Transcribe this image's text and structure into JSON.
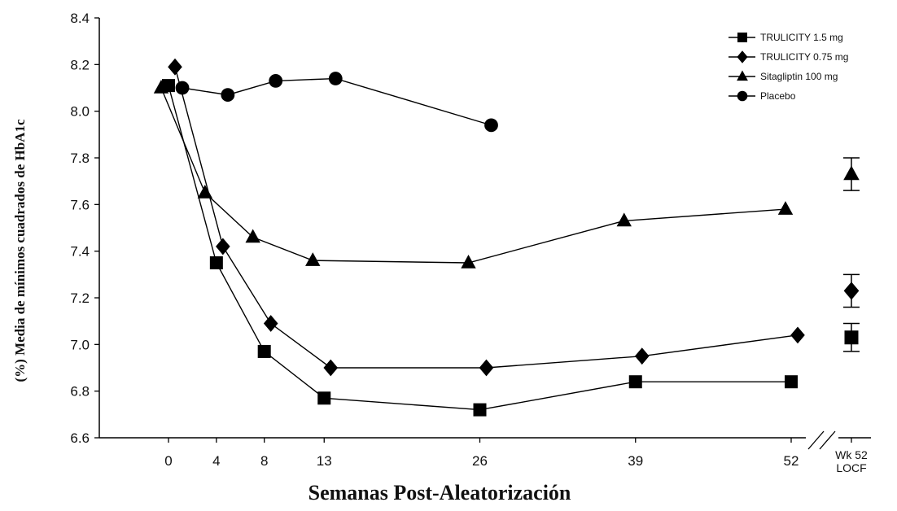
{
  "chart_data": {
    "type": "line",
    "title": "",
    "xlabel": "Semanas Post-Aleatorización",
    "ylabel": "(%) Media de mínimos cuadrados de HbA1c",
    "ylim": [
      6.6,
      8.4
    ],
    "yticks": [
      "6.6",
      "6.8",
      "7.0",
      "7.2",
      "7.4",
      "7.6",
      "7.8",
      "8.0",
      "8.2",
      "8.4"
    ],
    "xticks": [
      "0",
      "4",
      "8",
      "13",
      "26",
      "39",
      "52"
    ],
    "locf_label_line1": "Wk 52",
    "locf_label_line2": "LOCF",
    "legend_position": "top-right",
    "grid": false,
    "series": [
      {
        "name": "TRULICITY 1.5 mg",
        "marker": "square",
        "x": [
          0,
          4,
          8,
          13,
          26,
          39,
          52
        ],
        "y": [
          8.11,
          7.35,
          6.97,
          6.77,
          6.72,
          6.84,
          6.84
        ],
        "locf": {
          "mean": 7.03,
          "err": 0.06
        }
      },
      {
        "name": "TRULICITY 0.75 mg",
        "marker": "diamond",
        "x": [
          0,
          4,
          8,
          13,
          26,
          39,
          52
        ],
        "y": [
          8.19,
          7.42,
          7.09,
          6.9,
          6.9,
          6.95,
          7.04
        ],
        "locf": {
          "mean": 7.23,
          "err": 0.07
        }
      },
      {
        "name": "Sitagliptin 100 mg",
        "marker": "triangle",
        "x": [
          0,
          4,
          8,
          13,
          26,
          39,
          52
        ],
        "y": [
          8.1,
          7.65,
          7.46,
          7.36,
          7.35,
          7.53,
          7.58
        ],
        "locf": {
          "mean": 7.73,
          "err": 0.07
        }
      },
      {
        "name": "Placebo",
        "marker": "circle",
        "x": [
          0,
          4,
          8,
          13,
          26
        ],
        "y": [
          8.1,
          8.07,
          8.13,
          8.14,
          7.94
        ]
      }
    ]
  }
}
